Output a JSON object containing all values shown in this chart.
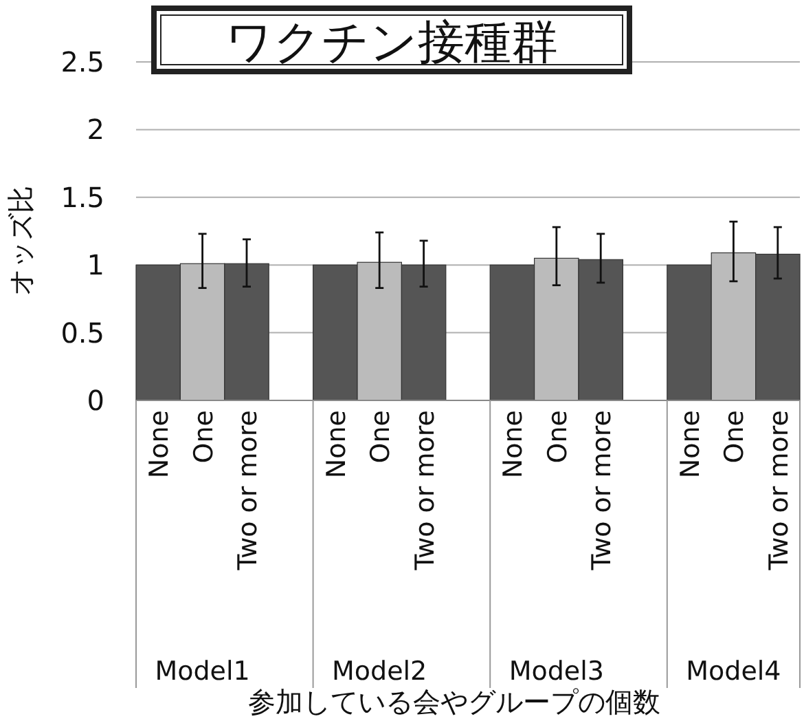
{
  "chart_data": {
    "type": "bar",
    "title": "ワクチン接種群",
    "ylabel": "オッズ比",
    "xlabel": "参加している会やグループの個数",
    "categories": [
      "None",
      "One",
      "Two or more",
      "None",
      "One",
      "Two or more",
      "None",
      "One",
      "Two or more",
      "None",
      "One",
      "Two or more"
    ],
    "values": [
      1.0,
      1.01,
      1.01,
      1.0,
      1.02,
      1.0,
      1.0,
      1.05,
      1.04,
      1.0,
      1.09,
      1.08
    ],
    "errors": [
      null,
      [
        0.83,
        1.23
      ],
      [
        0.84,
        1.19
      ],
      null,
      [
        0.83,
        1.24
      ],
      [
        0.84,
        1.18
      ],
      null,
      [
        0.85,
        1.28
      ],
      [
        0.87,
        1.23
      ],
      null,
      [
        0.88,
        1.32
      ],
      [
        0.9,
        1.28
      ]
    ],
    "colors": [
      "#555555",
      "#bbbbbb",
      "#555555",
      "#555555",
      "#bbbbbb",
      "#555555",
      "#555555",
      "#bbbbbb",
      "#555555",
      "#555555",
      "#bbbbbb",
      "#555555"
    ],
    "annotations": [
      "Model1",
      "Model2",
      "Model3",
      "Model4"
    ],
    "ylim": [
      0,
      2.5
    ],
    "yticks": [
      0,
      0.5,
      1,
      1.5,
      2,
      2.5
    ],
    "grid": "y"
  }
}
